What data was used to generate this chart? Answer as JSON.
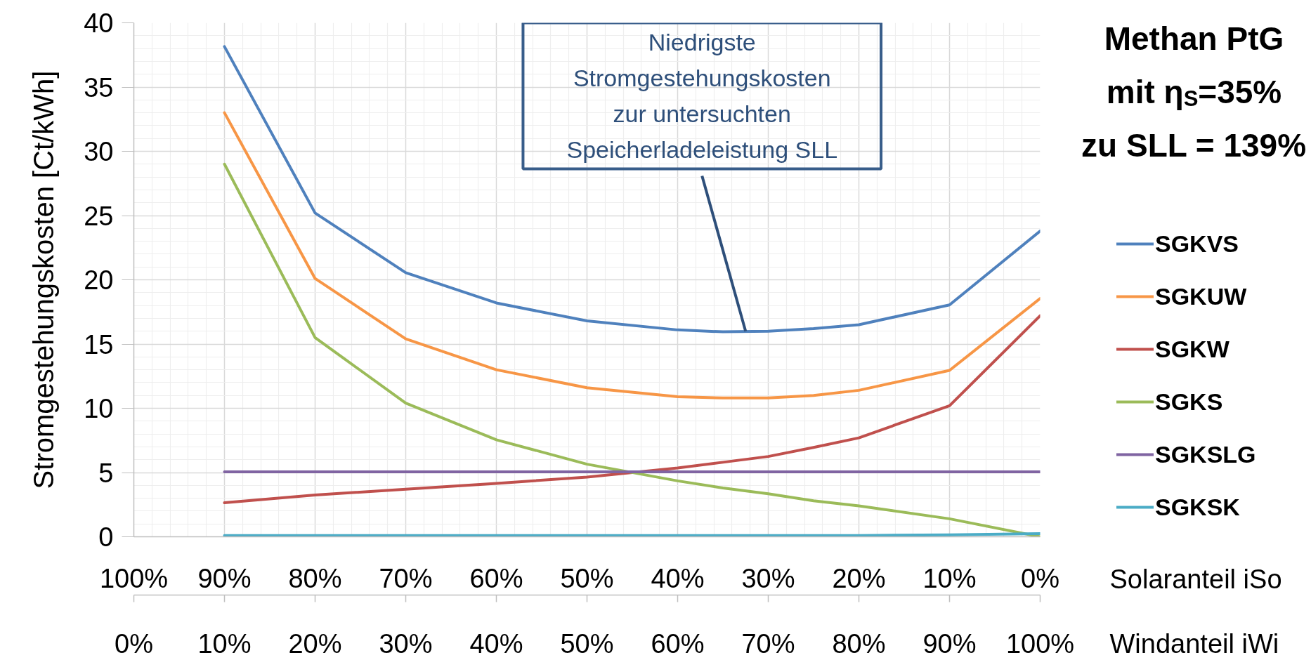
{
  "chart_data": {
    "type": "line",
    "title": "Methan PtG\nmit η$_{S}$=35%\nzu SLL = 139%",
    "ylabel": "Stromgestehungskosten [Ct/kWh]",
    "xlabel": "Windanteil iWi",
    "x2label": "Solaranteil iSo",
    "x": [
      10,
      20,
      30,
      40,
      50,
      60,
      65,
      70,
      75,
      80,
      90,
      100
    ],
    "xlim": [
      0,
      100
    ],
    "xticks": [
      {
        "value": 0,
        "label": "0%"
      },
      {
        "value": 10,
        "label": "10%"
      },
      {
        "value": 20,
        "label": "20%"
      },
      {
        "value": 30,
        "label": "30%"
      },
      {
        "value": 40,
        "label": "40%"
      },
      {
        "value": 50,
        "label": "50%"
      },
      {
        "value": 60,
        "label": "60%"
      },
      {
        "value": 70,
        "label": "70%"
      },
      {
        "value": 80,
        "label": "80%"
      },
      {
        "value": 90,
        "label": "90%"
      },
      {
        "value": 100,
        "label": "100%"
      }
    ],
    "x2lim": [
      100,
      0
    ],
    "x2ticks": [
      {
        "value": 100,
        "label": "100%"
      },
      {
        "value": 90,
        "label": "90%"
      },
      {
        "value": 80,
        "label": "80%"
      },
      {
        "value": 70,
        "label": "70%"
      },
      {
        "value": 60,
        "label": "60%"
      },
      {
        "value": 50,
        "label": "50%"
      },
      {
        "value": 40,
        "label": "40%"
      },
      {
        "value": 30,
        "label": "30%"
      },
      {
        "value": 20,
        "label": "20%"
      },
      {
        "value": 10,
        "label": "10%"
      },
      {
        "value": 0,
        "label": "0%"
      }
    ],
    "ylim": [
      0,
      40
    ],
    "yticks": [
      0,
      5,
      10,
      15,
      20,
      25,
      30,
      35,
      40
    ],
    "series": [
      {
        "name": "SGKVS",
        "color": "#4f81bd",
        "values": [
          38.15,
          25.2,
          20.55,
          18.2,
          16.8,
          16.1,
          15.95,
          16.0,
          16.2,
          16.5,
          18.05,
          23.8
        ]
      },
      {
        "name": "SGKUW",
        "color": "#f79646",
        "values": [
          33.0,
          20.1,
          15.4,
          13.0,
          11.6,
          10.9,
          10.8,
          10.8,
          11.0,
          11.4,
          12.95,
          18.55
        ]
      },
      {
        "name": "SGKW",
        "color": "#c0504d",
        "values": [
          2.65,
          3.25,
          3.7,
          4.15,
          4.65,
          5.35,
          5.8,
          6.25,
          6.95,
          7.7,
          10.2,
          17.2
        ]
      },
      {
        "name": "SGKS",
        "color": "#9bbb59",
        "values": [
          29.0,
          15.5,
          10.4,
          7.55,
          5.65,
          4.35,
          3.8,
          3.35,
          2.8,
          2.4,
          1.4,
          0.0
        ]
      },
      {
        "name": "SGKSLG",
        "color": "#8064a2",
        "values": [
          5.05,
          5.05,
          5.05,
          5.05,
          5.05,
          5.05,
          5.05,
          5.05,
          5.05,
          5.05,
          5.05,
          5.05
        ]
      },
      {
        "name": "SGKSK",
        "color": "#4bacc6",
        "values": [
          0.1,
          0.1,
          0.1,
          0.1,
          0.1,
          0.1,
          0.1,
          0.1,
          0.1,
          0.1,
          0.15,
          0.25
        ]
      }
    ],
    "annotations": [
      {
        "text": "Niedrigste Stromgestehungskosten zur untersuchten Speicherladeleistung SLL",
        "x": 67.5,
        "y": 16.0
      }
    ],
    "grid": true,
    "legend": "right",
    "line_style": "solid"
  }
}
